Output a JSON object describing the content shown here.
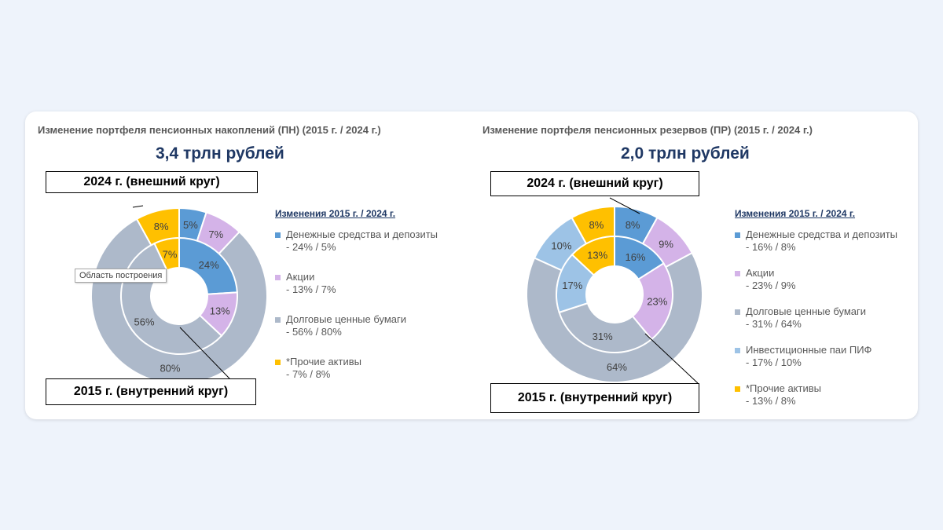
{
  "colors": {
    "cash": "#5b9bd5",
    "stocks": "#d4b3e8",
    "bonds": "#adb9ca",
    "pif": "#9dc3e6",
    "other": "#ffc000"
  },
  "chart_data": [
    {
      "type": "donut",
      "title": "Изменение портфеля пенсионных накоплений (ПН) (2015 г. / 2024 г.)",
      "subtitle": "3,4 трлн рублей",
      "outer_label": "2024 г. (внешний круг)",
      "inner_label": "2015 г. (внутренний круг)",
      "tooltip": "Область построения",
      "legend_title": "Изменения 2015 г. / 2024 г.",
      "legend": [
        {
          "name": "Денежные средства и депозиты",
          "detail": "- 24% / 5%",
          "color_key": "cash"
        },
        {
          "name": "Акции",
          "detail": "- 13% / 7%",
          "color_key": "stocks"
        },
        {
          "name": "Долговые ценные бумаги",
          "detail": "- 56% / 80%",
          "color_key": "bonds"
        },
        {
          "name": "*Прочие активы",
          "detail": "- 7% / 8%",
          "color_key": "other"
        }
      ],
      "rings": [
        {
          "year": "2024",
          "slices": [
            {
              "name": "Денежные средства и депозиты",
              "value": 5,
              "label": "5%",
              "color_key": "cash"
            },
            {
              "name": "Акции",
              "value": 7,
              "label": "7%",
              "color_key": "stocks"
            },
            {
              "name": "Долговые ценные бумаги",
              "value": 80,
              "label": "80%",
              "color_key": "bonds"
            },
            {
              "name": "*Прочие активы",
              "value": 8,
              "label": "8%",
              "color_key": "other"
            }
          ]
        },
        {
          "year": "2015",
          "slices": [
            {
              "name": "Денежные средства и депозиты",
              "value": 24,
              "label": "24%",
              "color_key": "cash"
            },
            {
              "name": "Акции",
              "value": 13,
              "label": "13%",
              "color_key": "stocks"
            },
            {
              "name": "Долговые ценные бумаги",
              "value": 56,
              "label": "56%",
              "color_key": "bonds"
            },
            {
              "name": "*Прочие активы",
              "value": 7,
              "label": "7%",
              "color_key": "other"
            }
          ]
        }
      ]
    },
    {
      "type": "donut",
      "title": "Изменение портфеля пенсионных резервов (ПР) (2015 г. / 2024 г.)",
      "subtitle": "2,0 трлн рублей",
      "outer_label": "2024 г. (внешний круг)",
      "inner_label": "2015 г. (внутренний круг)",
      "legend_title": "Изменения 2015 г. / 2024 г.",
      "legend": [
        {
          "name": "Денежные средства и депозиты",
          "detail": "- 16% / 8%",
          "color_key": "cash"
        },
        {
          "name": "Акции",
          "detail": "- 23% / 9%",
          "color_key": "stocks"
        },
        {
          "name": "Долговые ценные бумаги",
          "detail": "- 31% / 64%",
          "color_key": "bonds"
        },
        {
          "name": "Инвестиционные паи ПИФ",
          "detail": "- 17% / 10%",
          "color_key": "pif"
        },
        {
          "name": "*Прочие активы",
          "detail": "- 13% / 8%",
          "color_key": "other"
        }
      ],
      "rings": [
        {
          "year": "2024",
          "slices": [
            {
              "name": "Денежные средства и депозиты",
              "value": 8,
              "label": "8%",
              "color_key": "cash"
            },
            {
              "name": "Акции",
              "value": 9,
              "label": "9%",
              "color_key": "stocks"
            },
            {
              "name": "Долговые ценные бумаги",
              "value": 64,
              "label": "64%",
              "color_key": "bonds"
            },
            {
              "name": "Инвестиционные паи ПИФ",
              "value": 10,
              "label": "10%",
              "color_key": "pif"
            },
            {
              "name": "*Прочие активы",
              "value": 8,
              "label": "8%",
              "color_key": "other"
            }
          ]
        },
        {
          "year": "2015",
          "slices": [
            {
              "name": "Денежные средства и депозиты",
              "value": 16,
              "label": "16%",
              "color_key": "cash"
            },
            {
              "name": "Акции",
              "value": 23,
              "label": "23%",
              "color_key": "stocks"
            },
            {
              "name": "Долговые ценные бумаги",
              "value": 31,
              "label": "31%",
              "color_key": "bonds"
            },
            {
              "name": "Инвестиционные паи ПИФ",
              "value": 17,
              "label": "17%",
              "color_key": "pif"
            },
            {
              "name": "*Прочие активы",
              "value": 13,
              "label": "13%",
              "color_key": "other"
            }
          ]
        }
      ]
    }
  ]
}
